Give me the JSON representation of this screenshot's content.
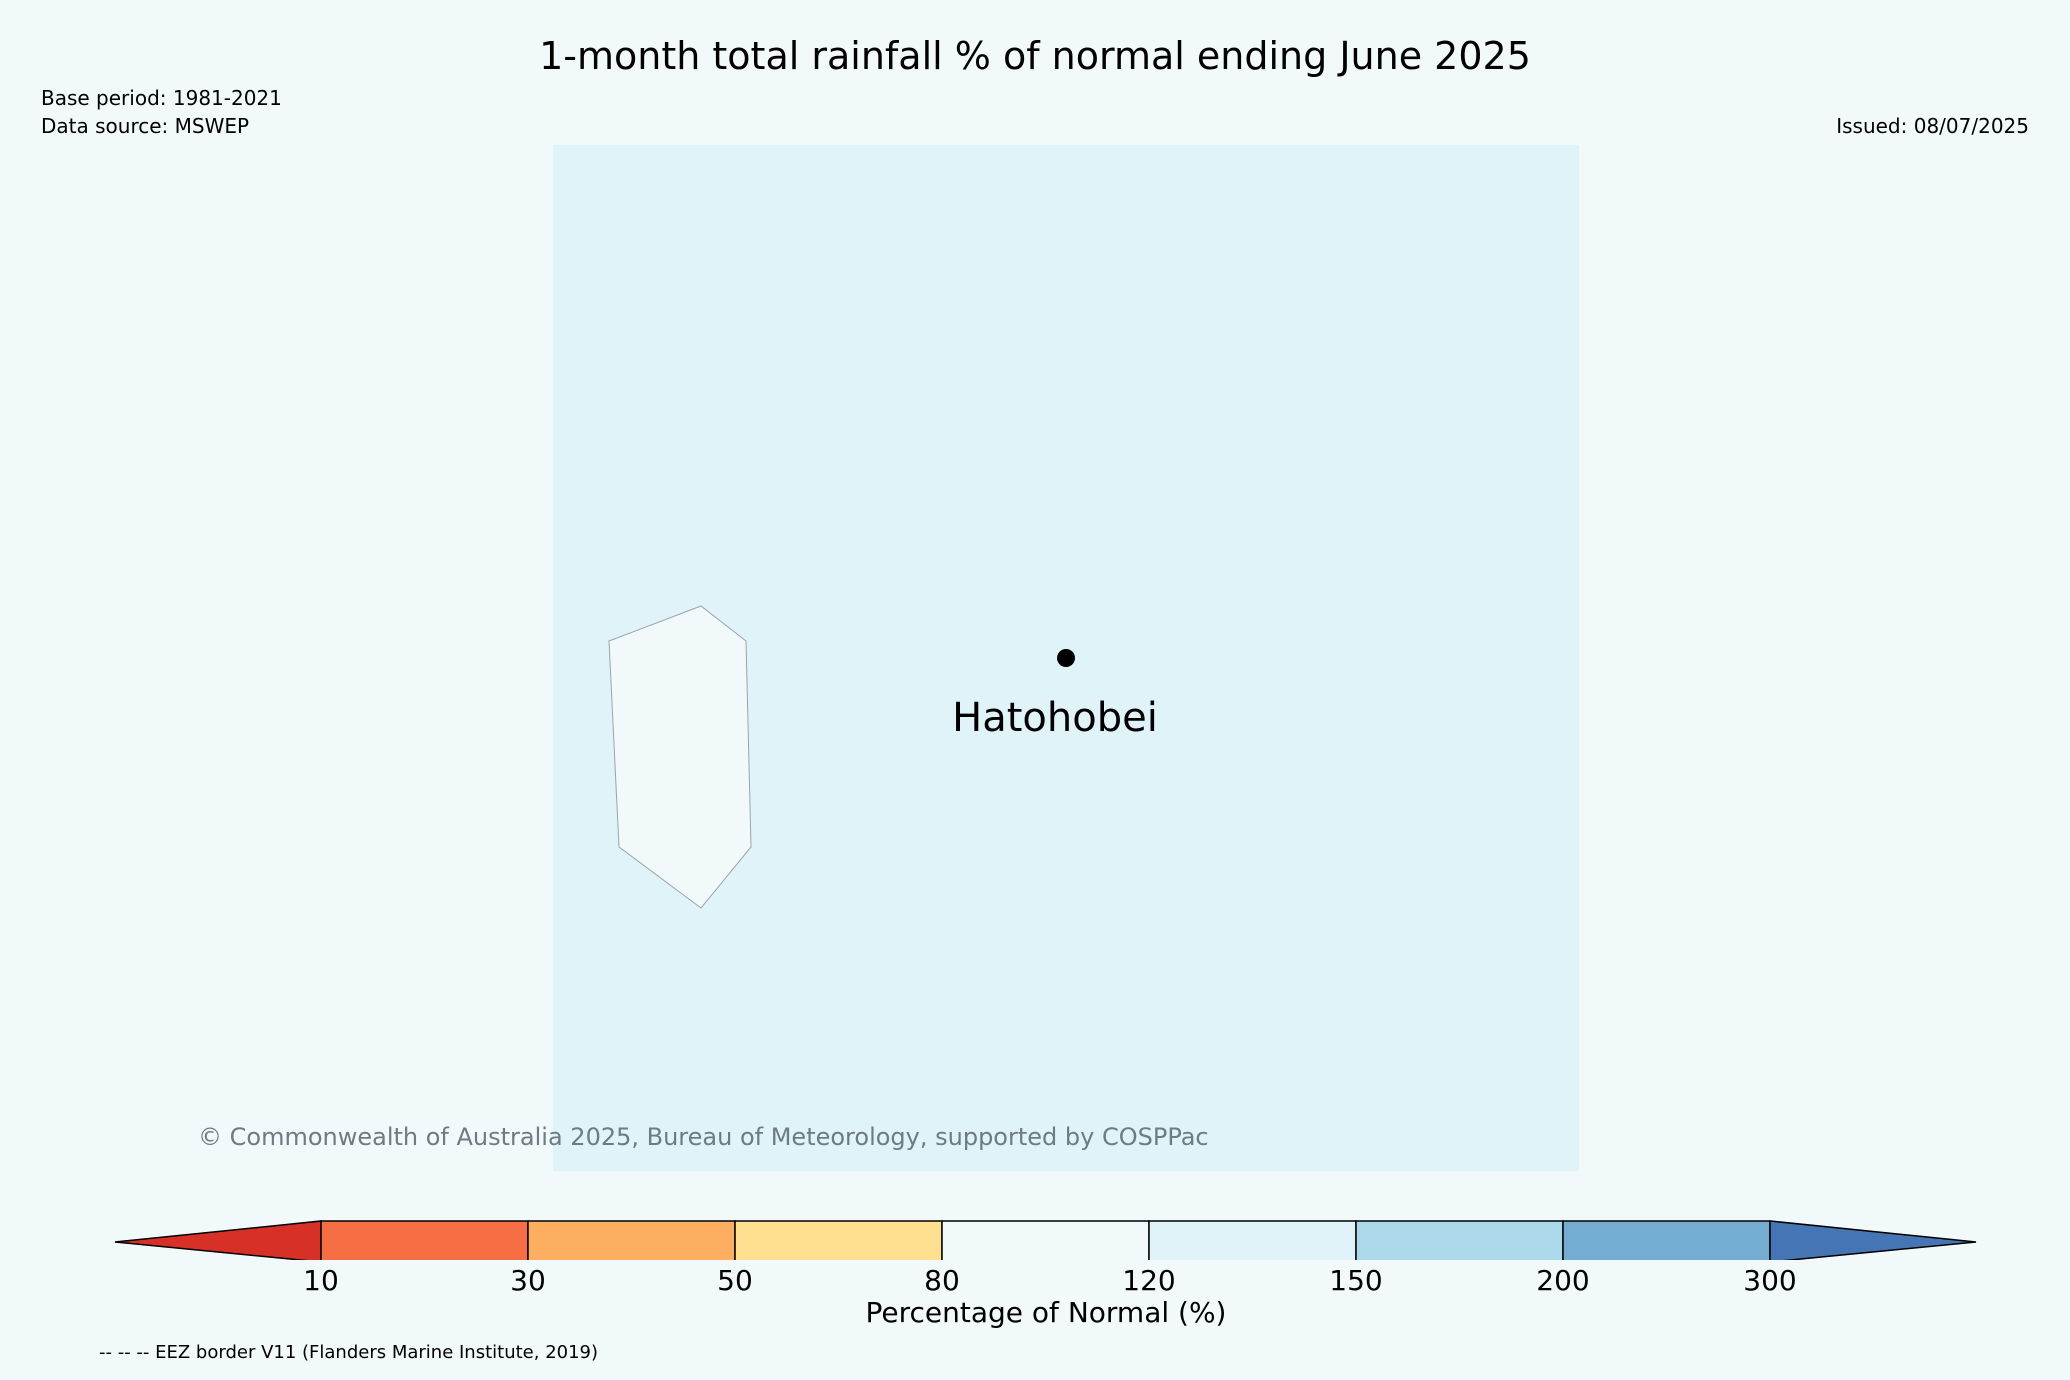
{
  "title": "1-month total rainfall % of normal ending June 2025",
  "base_period": "Base period: 1981-2021",
  "data_source": "Data source: MSWEP",
  "issued": "Issued: 08/07/2025",
  "map": {
    "background_color": "#e0f3f8",
    "island_fill": "#f2f9fb",
    "station": {
      "name": "Hatohobei"
    },
    "copyright": "© Commonwealth of Australia 2025, Bureau of Meteorology, supported by COSPPac"
  },
  "legend": {
    "label": "Percentage of Normal (%)",
    "ticks": [
      "10",
      "30",
      "50",
      "80",
      "120",
      "150",
      "200",
      "300"
    ],
    "colors": {
      "below_10": "#d73027",
      "10_30": "#f46d43",
      "30_50": "#fdae61",
      "50_80": "#fee090",
      "80_120": "#f2f9fb",
      "120_150": "#e0f3f8",
      "150_200": "#abd9e9",
      "200_300": "#74add1",
      "above_300": "#4575b4"
    }
  },
  "eez_note": "-- -- -- EEZ border V11 (Flanders Marine Institute, 2019)"
}
